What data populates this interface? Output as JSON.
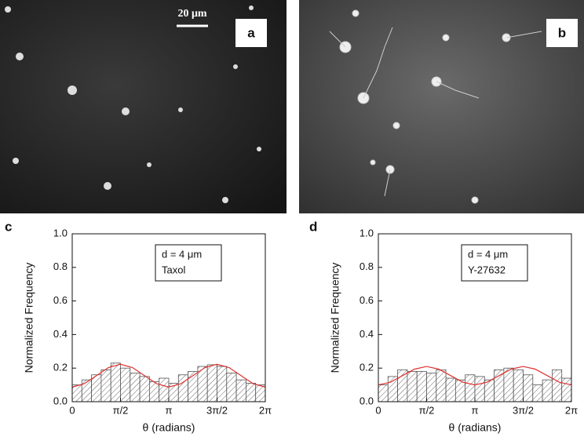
{
  "images": [
    {
      "panel": "a",
      "scale_bar": "20 μm"
    },
    {
      "panel": "b"
    }
  ],
  "chart_data": [
    {
      "type": "histogram",
      "panel": "c",
      "xlabel": "θ (radians)",
      "ylabel": "Normalized Frequency",
      "annotation": [
        "d = 4 μm",
        "Taxol"
      ],
      "bins": [
        0,
        0.3142,
        0.6283,
        0.9425,
        1.2566,
        1.5708,
        1.885,
        2.1991,
        2.5133,
        2.8274,
        3.1416,
        3.4558,
        3.7699,
        4.0841,
        4.3982,
        4.7124,
        5.0265,
        5.3407,
        5.6549,
        5.969,
        6.2832
      ],
      "values": [
        0.1,
        0.13,
        0.16,
        0.19,
        0.23,
        0.2,
        0.17,
        0.15,
        0.12,
        0.14,
        0.11,
        0.16,
        0.18,
        0.21,
        0.22,
        0.21,
        0.17,
        0.13,
        0.11,
        0.1
      ],
      "color": "#555555",
      "fit": {
        "color": "#e03030",
        "x": [
          0,
          0.3927,
          0.7854,
          1.1781,
          1.5708,
          1.9635,
          2.3562,
          2.7489,
          3.1416,
          3.5343,
          3.927,
          4.3197,
          4.7124,
          5.1051,
          5.4978,
          5.8905,
          6.2832
        ],
        "values": [
          0.087,
          0.107,
          0.155,
          0.203,
          0.223,
          0.203,
          0.155,
          0.107,
          0.087,
          0.107,
          0.155,
          0.203,
          0.223,
          0.203,
          0.155,
          0.107,
          0.087
        ]
      },
      "xlim": [
        0,
        6.2832
      ],
      "xticks": [
        0,
        {
          "value": 1.5708,
          "label": "π/2"
        },
        {
          "value": 3.1416,
          "label": "π"
        },
        {
          "value": 4.7124,
          "label": "3π/2"
        },
        {
          "value": 6.2832,
          "label": "2π"
        }
      ],
      "ylim": [
        0,
        1
      ],
      "yticks": [
        {
          "value": 0,
          "label": "0.0"
        },
        {
          "value": 0.2,
          "label": "0.2"
        },
        {
          "value": 0.4,
          "label": "0.4"
        },
        {
          "value": 0.6,
          "label": "0.6"
        },
        {
          "value": 0.8,
          "label": "0.8"
        },
        {
          "value": 1,
          "label": "1.0"
        }
      ]
    },
    {
      "type": "histogram",
      "panel": "d",
      "xlabel": "θ (radians)",
      "ylabel": "Normalized Frequency",
      "annotation": [
        "d = 4 μm",
        "Y-27632"
      ],
      "bins": [
        0,
        0.3142,
        0.6283,
        0.9425,
        1.2566,
        1.5708,
        1.885,
        2.1991,
        2.5133,
        2.8274,
        3.1416,
        3.4558,
        3.7699,
        4.0841,
        4.3982,
        4.7124,
        5.0265,
        5.3407,
        5.6549,
        5.969,
        6.2832
      ],
      "values": [
        0.1,
        0.15,
        0.19,
        0.18,
        0.18,
        0.17,
        0.19,
        0.14,
        0.13,
        0.16,
        0.15,
        0.13,
        0.19,
        0.2,
        0.19,
        0.16,
        0.1,
        0.13,
        0.19,
        0.14
      ],
      "color": "#555555",
      "fit": {
        "color": "#e03030",
        "x": [
          0,
          0.3927,
          0.7854,
          1.1781,
          1.5708,
          1.9635,
          2.3562,
          2.7489,
          3.1416,
          3.5343,
          3.927,
          4.3197,
          4.7124,
          5.1051,
          5.4978,
          5.8905,
          6.2832
        ],
        "values": [
          0.1,
          0.116,
          0.155,
          0.194,
          0.21,
          0.194,
          0.155,
          0.116,
          0.1,
          0.116,
          0.155,
          0.194,
          0.21,
          0.194,
          0.155,
          0.116,
          0.1
        ]
      },
      "xlim": [
        0,
        6.2832
      ],
      "xticks": [
        0,
        {
          "value": 1.5708,
          "label": "π/2"
        },
        {
          "value": 3.1416,
          "label": "π"
        },
        {
          "value": 4.7124,
          "label": "3π/2"
        },
        {
          "value": 6.2832,
          "label": "2π"
        }
      ],
      "ylim": [
        0,
        1
      ],
      "yticks": [
        {
          "value": 0,
          "label": "0.0"
        },
        {
          "value": 0.2,
          "label": "0.2"
        },
        {
          "value": 0.4,
          "label": "0.4"
        },
        {
          "value": 0.6,
          "label": "0.6"
        },
        {
          "value": 0.8,
          "label": "0.8"
        },
        {
          "value": 1,
          "label": "1.0"
        }
      ]
    }
  ]
}
